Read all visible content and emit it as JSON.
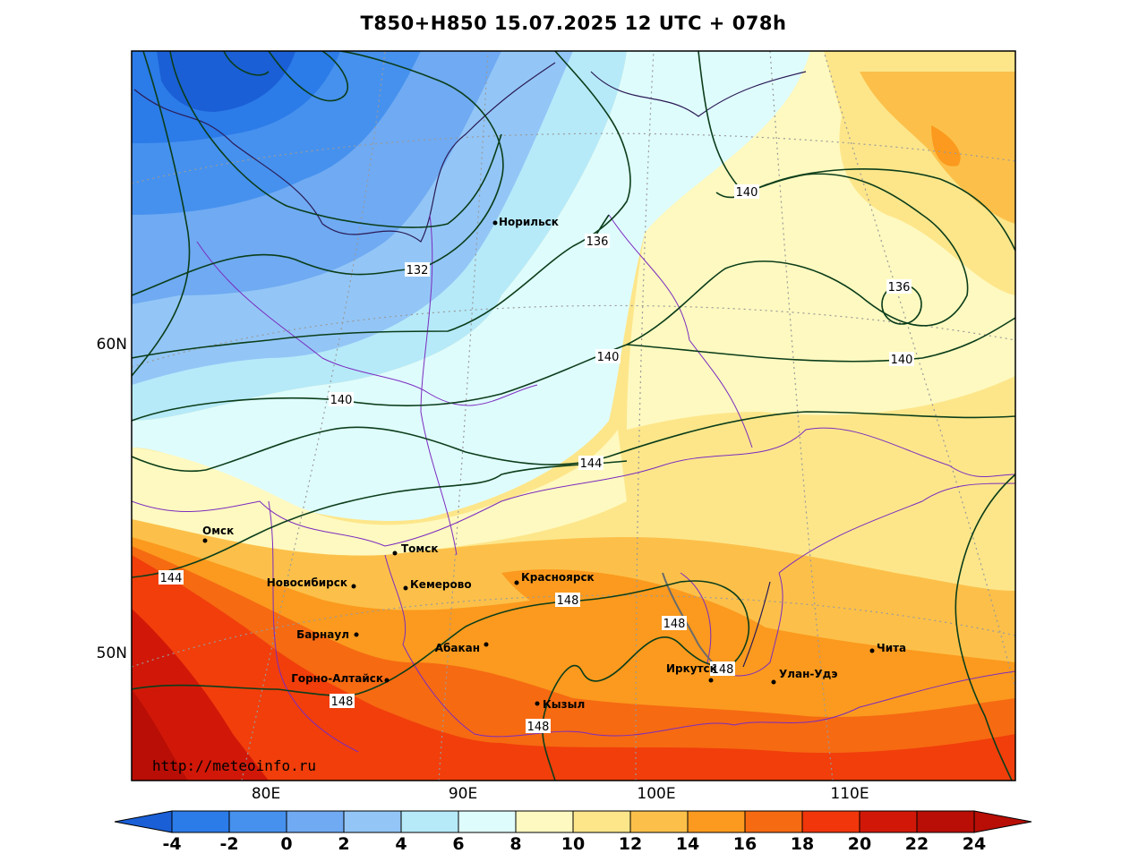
{
  "title": "T850+H850 15.07.2025 12 UTC + 078h",
  "watermark": "http://meteoinfo.ru",
  "lat_labels": [
    "60N",
    "50N"
  ],
  "lon_labels": [
    "80E",
    "90E",
    "100E",
    "110E"
  ],
  "cities": [
    {
      "name": "Норильск"
    },
    {
      "name": "Омск"
    },
    {
      "name": "Томск"
    },
    {
      "name": "Новосибирск"
    },
    {
      "name": "Кемерово"
    },
    {
      "name": "Красноярск"
    },
    {
      "name": "Барнаул"
    },
    {
      "name": "Абакан"
    },
    {
      "name": "Горно-Алтайск"
    },
    {
      "name": "Иркутск"
    },
    {
      "name": "Улан-Удэ"
    },
    {
      "name": "Чита"
    },
    {
      "name": "Кызыл"
    }
  ],
  "isohypse_labels": [
    "132",
    "136",
    "136",
    "140",
    "140",
    "140",
    "140",
    "144",
    "144",
    "148",
    "148",
    "148",
    "148",
    "148"
  ],
  "legend": {
    "ticks": [
      "-4",
      "-2",
      "0",
      "2",
      "4",
      "6",
      "8",
      "10",
      "12",
      "14",
      "16",
      "18",
      "20",
      "22",
      "24"
    ],
    "colors": [
      "#1a5fd6",
      "#2b7be8",
      "#4691ee",
      "#6faaf2",
      "#93c6f6",
      "#b6eaf9",
      "#dffcfd",
      "#fef9c0",
      "#fde68a",
      "#fcc04a",
      "#fb9a1e",
      "#f66a12",
      "#f0360a",
      "#d11808",
      "#b80e06"
    ]
  },
  "colors": {
    "cold": "#2b7be8",
    "warm": "#f0360a",
    "borders": "#7b2cbf",
    "isohypse": "#0b3d1a"
  }
}
